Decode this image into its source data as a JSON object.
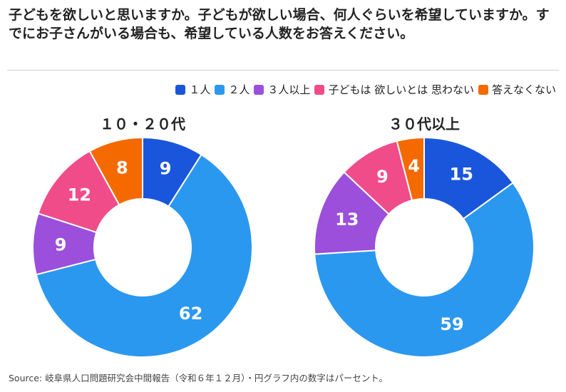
{
  "title": "子どもを欲しいと思いますか。子どもが欲しい場合、何人ぐらいを希望していますか。すでにお子さんがいる場合も、希望している人数をお答えください。",
  "legend": [
    {
      "label": "１人",
      "color": "#1a56db"
    },
    {
      "label": "２人",
      "color": "#2b98f0"
    },
    {
      "label": "３人以上",
      "color": "#9b4fdb"
    },
    {
      "label": "子どもは 欲しいとは 思わない",
      "color": "#f14c8a"
    },
    {
      "label": "答えなくない",
      "color": "#f56a00"
    }
  ],
  "chart_data": [
    {
      "type": "pie",
      "title": "１０・２０代",
      "categories": [
        "１人",
        "２人",
        "３人以上",
        "子どもは 欲しいとは 思わない",
        "答えなくない"
      ],
      "values": [
        9,
        62,
        9,
        12,
        8
      ]
    },
    {
      "type": "pie",
      "title": "３０代以上",
      "categories": [
        "１人",
        "２人",
        "３人以上",
        "子どもは 欲しいとは 思わない",
        "答えなくない"
      ],
      "values": [
        15,
        59,
        13,
        9,
        4
      ]
    }
  ],
  "source": "Source: 岐阜県人口問題研究会中間報告（令和６年１２月）・円グラフ内の数字はパーセント。"
}
